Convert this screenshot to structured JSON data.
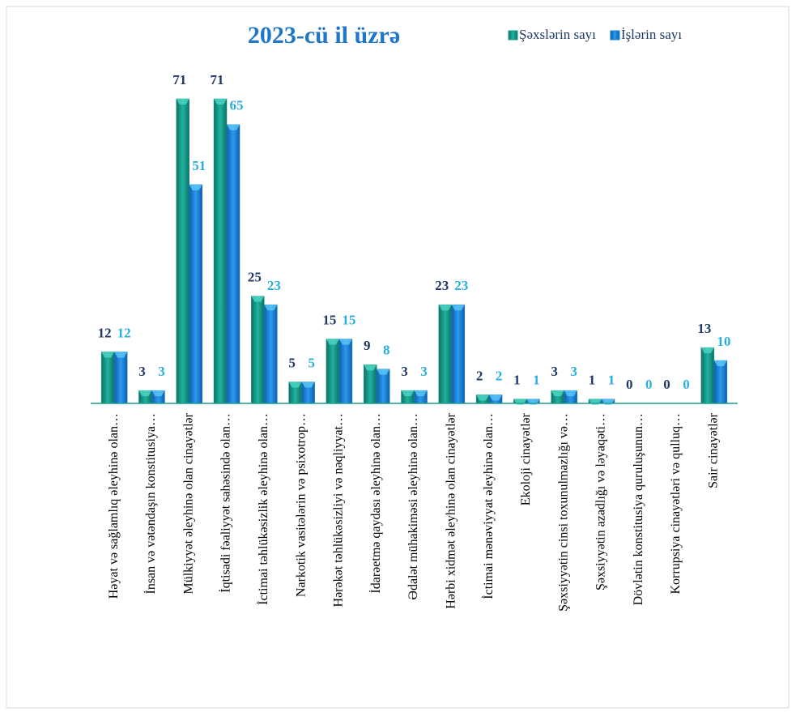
{
  "chart_data": {
    "type": "bar",
    "title": "2023-cü il üzrə",
    "categories": [
      "Həyat və sağlamlıq əleyhinə olan…",
      "İnsan və vətəndaşın konstitusiya…",
      "Mülkiyyət əleyhinə olan cinayətlər",
      "İqtisadi fəaliyyət sahəsində olan…",
      "İctimai təhlükəsizlik əleyhinə olan…",
      "Narkotik vasitələrin və psixotrop…",
      "Hərəkət təhlükəsizliyi və nəqliyyat…",
      "İdarəetmə qaydası əleyhinə olan…",
      "Ədalət mühakiməsi əleyhinə olan…",
      "Hərbi xidmət əleyhinə olan cinayətlər",
      "İctimai mənəviyyat əleyhinə olan…",
      "Ekoloji cinayətlər",
      "Şəxsiyyətin cinsi toxunulmazlığı və…",
      "Şəxsiyyətin azadlığı və ləyaqəti…",
      "Dövlətin konstitusiya quruluşunun…",
      "Korrupsiya cinayətləri və qulluq…",
      "Sair cinayətlər"
    ],
    "series": [
      {
        "name": "Şəxslərin sayı",
        "color": "#179c8c",
        "label_color": "#1f3864",
        "values": [
          12,
          3,
          71,
          71,
          25,
          5,
          15,
          9,
          3,
          23,
          2,
          1,
          3,
          1,
          0,
          0,
          13
        ]
      },
      {
        "name": "İşlərin sayı",
        "color": "#1b82d4",
        "label_color": "#29aee0",
        "values": [
          12,
          3,
          51,
          65,
          23,
          5,
          15,
          8,
          3,
          23,
          2,
          1,
          3,
          1,
          0,
          0,
          10
        ]
      }
    ],
    "legend": "top-right"
  }
}
